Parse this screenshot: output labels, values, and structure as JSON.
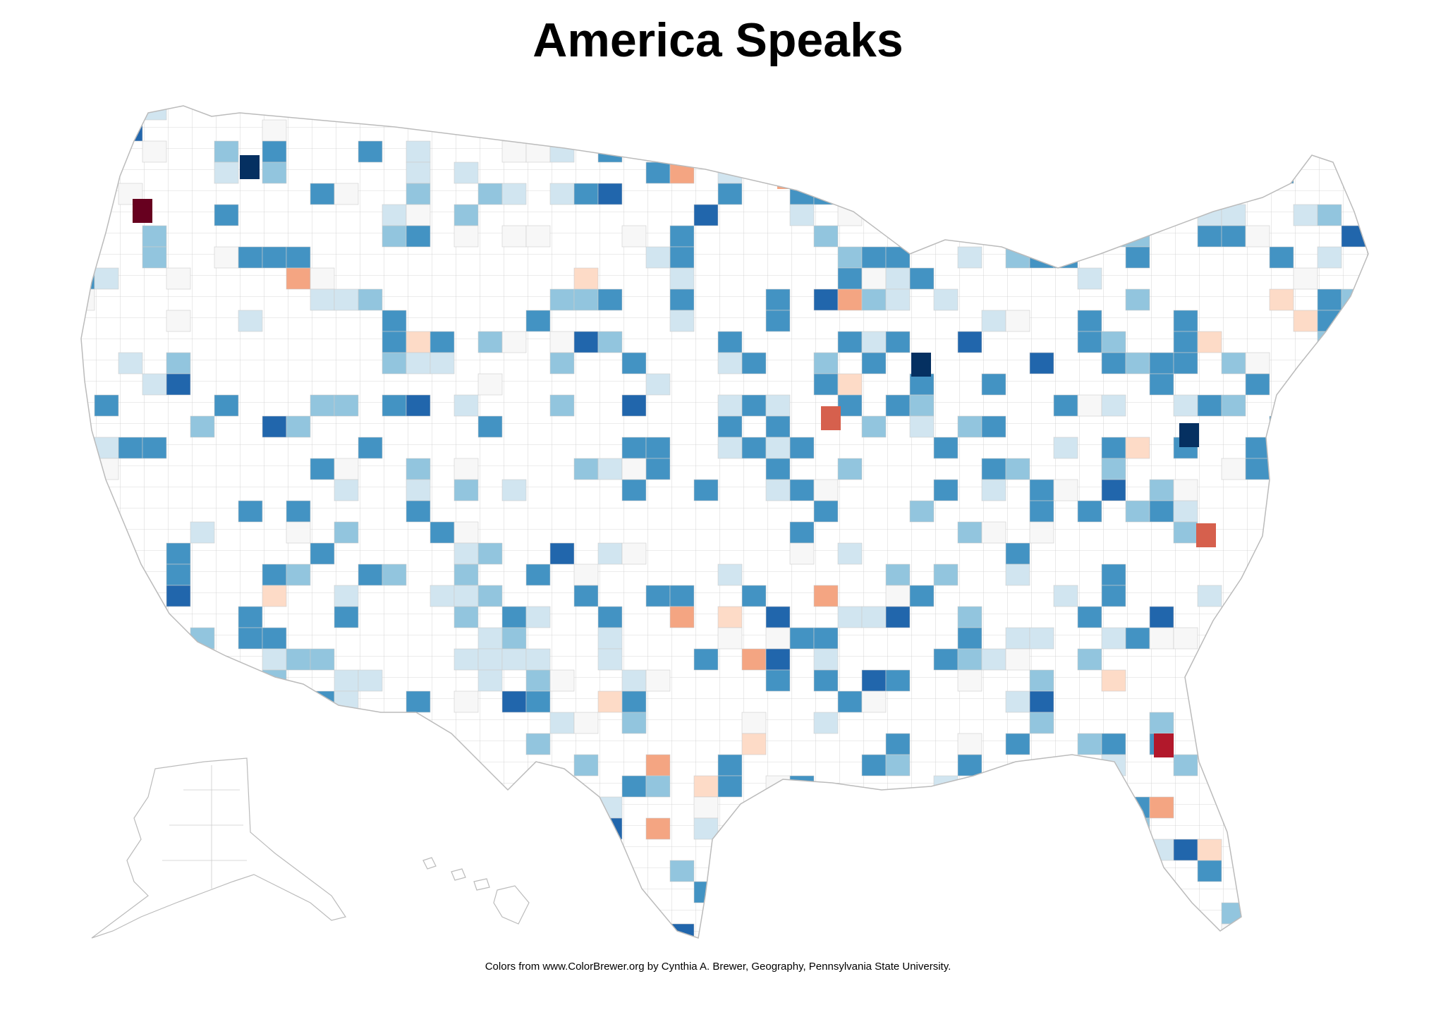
{
  "title": "America Speaks",
  "credit": "Colors from www.ColorBrewer.org by Cynthia A. Brewer, Geography, Pennsylvania State University.",
  "colors": {
    "background": "#ffffff",
    "county_stroke": "#cccccc",
    "state_stroke": "#bbbbbb",
    "neutral": "#f7f7f7",
    "palette": [
      "#67001f",
      "#b2182b",
      "#d6604d",
      "#f4a582",
      "#fddbc7",
      "#f7f7f7",
      "#d1e5f0",
      "#92c5de",
      "#4393c3",
      "#2166ac",
      "#053061"
    ]
  },
  "regions": [
    "contiguous-us",
    "alaska",
    "hawaii"
  ]
}
